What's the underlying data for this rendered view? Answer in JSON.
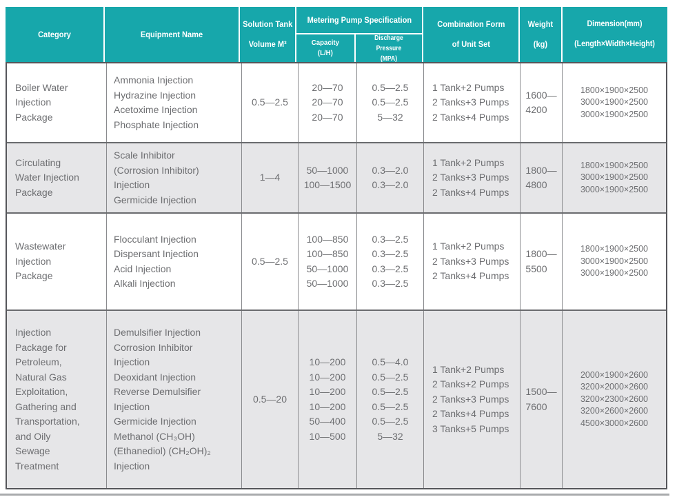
{
  "colors": {
    "header_bg": "#17a7ab",
    "header_text": "#ffffff",
    "row_alt_bg": "#e6e6e8",
    "body_text": "#6d6e71",
    "border_outer": "#55565a",
    "border_inner": "#8a8b8e"
  },
  "table": {
    "header": {
      "category": "Category",
      "equipment": "Equipment Name",
      "tank": "Solution Tank\nVolume M³",
      "pump_spec": "Metering Pump Specification",
      "capacity": "Capacity\n(L/H)",
      "discharge": "Discharge Pressure\n(MPA)",
      "combination": "Combination Form\nof Unit Set",
      "weight": "Weight\n(kg)",
      "dimension": "Dimension(mm)\n(Length×Width×Height)"
    },
    "rows": [
      {
        "category": "Boiler Water\nInjection\nPackage",
        "equipment": "Ammonia Injection\nHydrazine Injection\nAcetoxime Injection\nPhosphate Injection",
        "tank": "0.5—2.5",
        "capacity": "20—70\n20—70\n20—70",
        "discharge": "0.5—2.5\n0.5—2.5\n5—32",
        "combination": "1 Tank+2 Pumps\n2 Tanks+3 Pumps\n2 Tanks+4 Pumps",
        "weight": "1600—\n4200",
        "dimension": "1800×1900×2500\n3000×1900×2500\n3000×1900×2500"
      },
      {
        "category": "Circulating\nWater Injection\nPackage",
        "equipment": "Scale Inhibitor\n(Corrosion Inhibitor)\nInjection\nGermicide Injection",
        "tank": "1—4",
        "capacity": "50—1000\n100—1500",
        "discharge": "0.3—2.0\n0.3—2.0",
        "combination": "1 Tank+2 Pumps\n2 Tanks+3 Pumps\n2 Tanks+4 Pumps",
        "weight": "1800—\n4800",
        "dimension": "1800×1900×2500\n3000×1900×2500\n3000×1900×2500"
      },
      {
        "category": "Wastewater\nInjection\nPackage",
        "equipment": "Flocculant Injection\nDispersant Injection\nAcid Injection\nAlkali Injection",
        "tank": "0.5—2.5",
        "capacity": "100—850\n100—850\n50—1000\n50—1000",
        "discharge": "0.3—2.5\n0.3—2.5\n0.3—2.5\n0.3—2.5",
        "combination": "1 Tank+2 Pumps\n2 Tanks+3 Pumps\n2 Tanks+4 Pumps",
        "weight": "1800—\n5500",
        "dimension": "1800×1900×2500\n3000×1900×2500\n3000×1900×2500"
      },
      {
        "category": "Injection\nPackage for\nPetroleum,\nNatural Gas\nExploitation,\nGathering and\nTransportation,\nand Oily\nSewage\nTreatment",
        "equipment": "Demulsifier Injection\nCorrosion Inhibitor\nInjection\nDeoxidant Injection\nReverse Demulsifier\nInjection\nGermicide Injection\nMethanol (CH₃OH)\n(Ethanediol) (CH₂OH)₂\nInjection",
        "tank": "0.5—20",
        "capacity": "10—200\n10—200\n10—200\n10—200\n50—400\n10—500",
        "discharge": "0.5—4.0\n0.5—2.5\n0.5—2.5\n0.5—2.5\n0.5—2.5\n5—32",
        "combination": "1 Tank+2 Pumps\n2 Tanks+2 Pumps\n2 Tanks+3 Pumps\n2 Tanks+4 Pumps\n3 Tanks+5 Pumps",
        "weight": "1500—\n7600",
        "dimension": "2000×1900×2600\n3200×2000×2600\n3200×2300×2600\n3200×2600×2600\n4500×3000×2600"
      }
    ]
  }
}
